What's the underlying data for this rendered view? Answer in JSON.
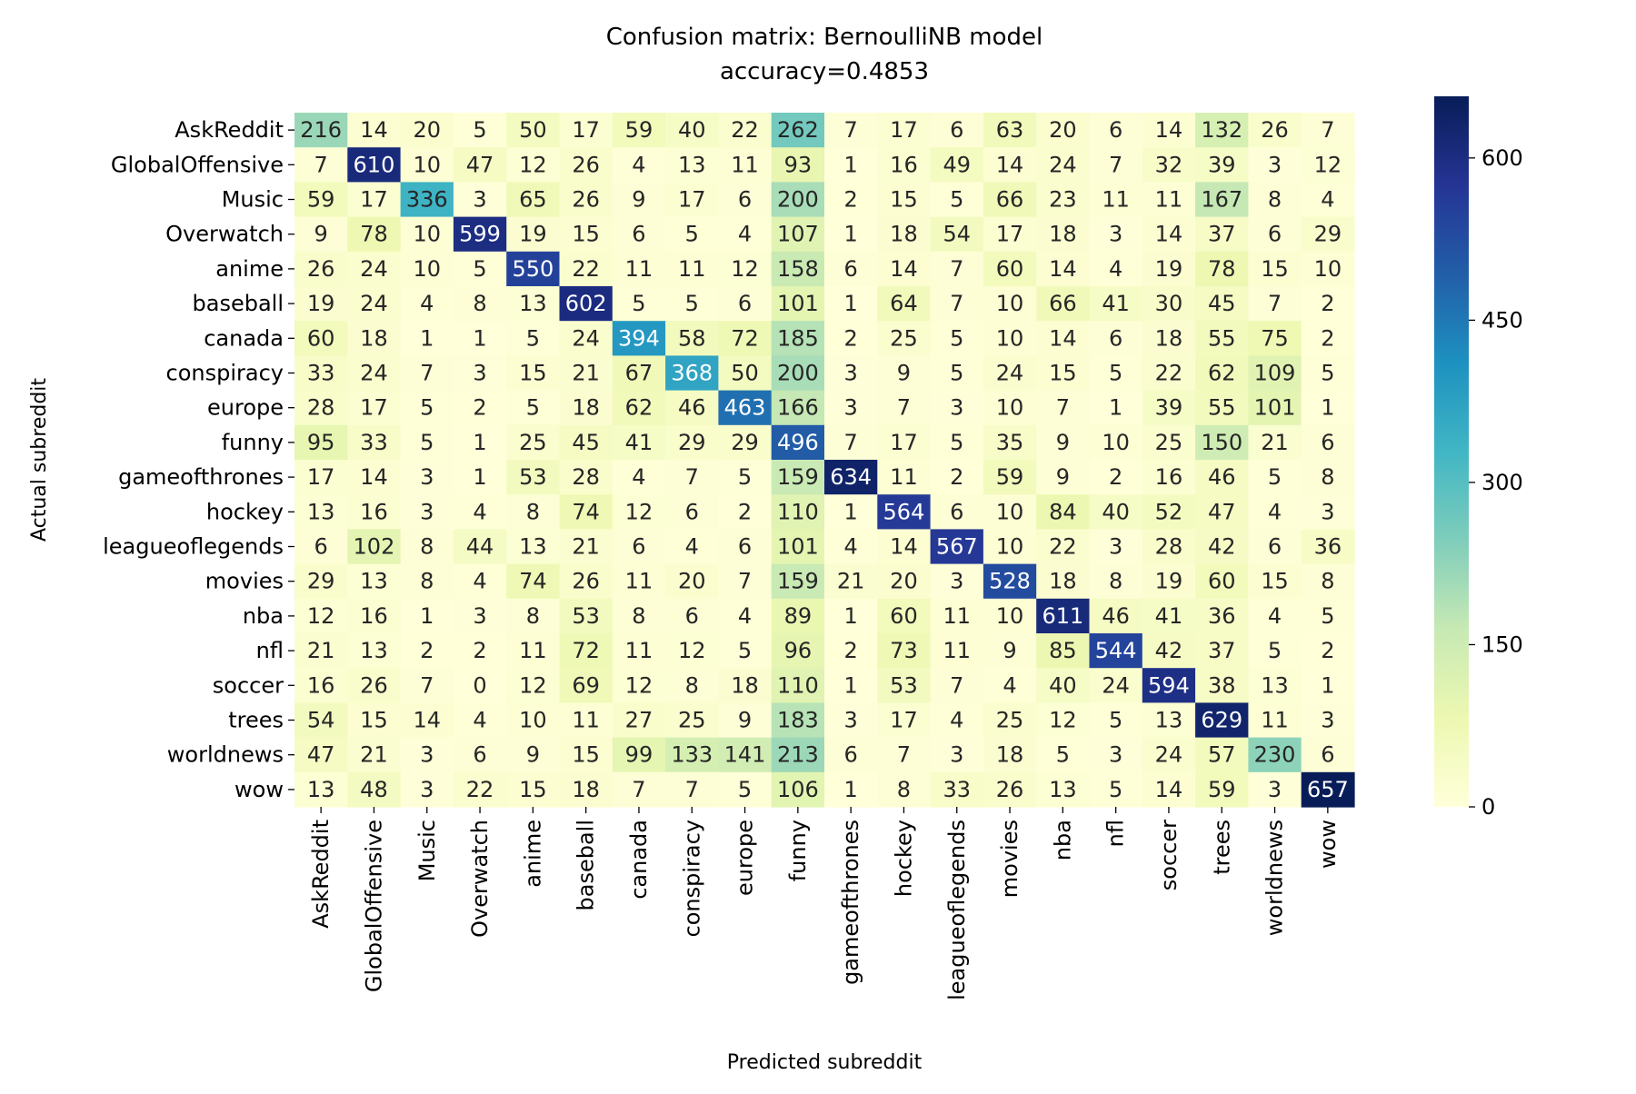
{
  "chart_data": {
    "type": "heatmap",
    "title": "Confusion matrix: BernoulliNB model",
    "subtitle": "accuracy=0.4853",
    "xlabel": "Predicted subreddit",
    "ylabel": "Actual subreddit",
    "row_labels": [
      "AskReddit",
      "GlobalOffensive",
      "Music",
      "Overwatch",
      "anime",
      "baseball",
      "canada",
      "conspiracy",
      "europe",
      "funny",
      "gameofthrones",
      "hockey",
      "leagueoflegends",
      "movies",
      "nba",
      "nfl",
      "soccer",
      "trees",
      "worldnews",
      "wow"
    ],
    "col_labels": [
      "AskReddit",
      "GlobalOffensive",
      "Music",
      "Overwatch",
      "anime",
      "baseball",
      "canada",
      "conspiracy",
      "europe",
      "funny",
      "gameofthrones",
      "hockey",
      "leagueoflegends",
      "movies",
      "nba",
      "nfl",
      "soccer",
      "trees",
      "worldnews",
      "wow"
    ],
    "values": [
      [
        216,
        14,
        20,
        5,
        50,
        17,
        59,
        40,
        22,
        262,
        7,
        17,
        6,
        63,
        20,
        6,
        14,
        132,
        26,
        7
      ],
      [
        7,
        610,
        10,
        47,
        12,
        26,
        4,
        13,
        11,
        93,
        1,
        16,
        49,
        14,
        24,
        7,
        32,
        39,
        3,
        12
      ],
      [
        59,
        17,
        336,
        3,
        65,
        26,
        9,
        17,
        6,
        200,
        2,
        15,
        5,
        66,
        23,
        11,
        11,
        167,
        8,
        4
      ],
      [
        9,
        78,
        10,
        599,
        19,
        15,
        6,
        5,
        4,
        107,
        1,
        18,
        54,
        17,
        18,
        3,
        14,
        37,
        6,
        29
      ],
      [
        26,
        24,
        10,
        5,
        550,
        22,
        11,
        11,
        12,
        158,
        6,
        14,
        7,
        60,
        14,
        4,
        19,
        78,
        15,
        10
      ],
      [
        19,
        24,
        4,
        8,
        13,
        602,
        5,
        5,
        6,
        101,
        1,
        64,
        7,
        10,
        66,
        41,
        30,
        45,
        7,
        2
      ],
      [
        60,
        18,
        1,
        1,
        5,
        24,
        394,
        58,
        72,
        185,
        2,
        25,
        5,
        10,
        14,
        6,
        18,
        55,
        75,
        2
      ],
      [
        33,
        24,
        7,
        3,
        15,
        21,
        67,
        368,
        50,
        200,
        3,
        9,
        5,
        24,
        15,
        5,
        22,
        62,
        109,
        5
      ],
      [
        28,
        17,
        5,
        2,
        5,
        18,
        62,
        46,
        463,
        166,
        3,
        7,
        3,
        10,
        7,
        1,
        39,
        55,
        101,
        1
      ],
      [
        95,
        33,
        5,
        1,
        25,
        45,
        41,
        29,
        29,
        496,
        7,
        17,
        5,
        35,
        9,
        10,
        25,
        150,
        21,
        6
      ],
      [
        17,
        14,
        3,
        1,
        53,
        28,
        4,
        7,
        5,
        159,
        634,
        11,
        2,
        59,
        9,
        2,
        16,
        46,
        5,
        8
      ],
      [
        13,
        16,
        3,
        4,
        8,
        74,
        12,
        6,
        2,
        110,
        1,
        564,
        6,
        10,
        84,
        40,
        52,
        47,
        4,
        3
      ],
      [
        6,
        102,
        8,
        44,
        13,
        21,
        6,
        4,
        6,
        101,
        4,
        14,
        567,
        10,
        22,
        3,
        28,
        42,
        6,
        36
      ],
      [
        29,
        13,
        8,
        4,
        74,
        26,
        11,
        20,
        7,
        159,
        21,
        20,
        3,
        528,
        18,
        8,
        19,
        60,
        15,
        8
      ],
      [
        12,
        16,
        1,
        3,
        8,
        53,
        8,
        6,
        4,
        89,
        1,
        60,
        11,
        10,
        611,
        46,
        41,
        36,
        4,
        5
      ],
      [
        21,
        13,
        2,
        2,
        11,
        72,
        11,
        12,
        5,
        96,
        2,
        73,
        11,
        9,
        85,
        544,
        42,
        37,
        5,
        2
      ],
      [
        16,
        26,
        7,
        0,
        12,
        69,
        12,
        8,
        18,
        110,
        1,
        53,
        7,
        4,
        40,
        24,
        594,
        38,
        13,
        1
      ],
      [
        54,
        15,
        14,
        4,
        10,
        11,
        27,
        25,
        9,
        183,
        3,
        17,
        4,
        25,
        12,
        5,
        13,
        629,
        11,
        3
      ],
      [
        47,
        21,
        3,
        6,
        9,
        15,
        99,
        133,
        141,
        213,
        6,
        7,
        3,
        18,
        5,
        3,
        24,
        57,
        230,
        6
      ],
      [
        13,
        48,
        3,
        22,
        15,
        18,
        7,
        7,
        5,
        106,
        1,
        8,
        33,
        26,
        13,
        5,
        14,
        59,
        3,
        657
      ]
    ],
    "colormap": "YlGnBu",
    "colormap_stops": [
      "#ffffd9",
      "#edf8b1",
      "#c7e9b4",
      "#7fcdbb",
      "#41b6c4",
      "#1d91c0",
      "#225ea8",
      "#253494",
      "#081d58"
    ],
    "vmin": 0,
    "vmax": 657,
    "colorbar_ticks": [
      0,
      150,
      300,
      450,
      600
    ]
  }
}
